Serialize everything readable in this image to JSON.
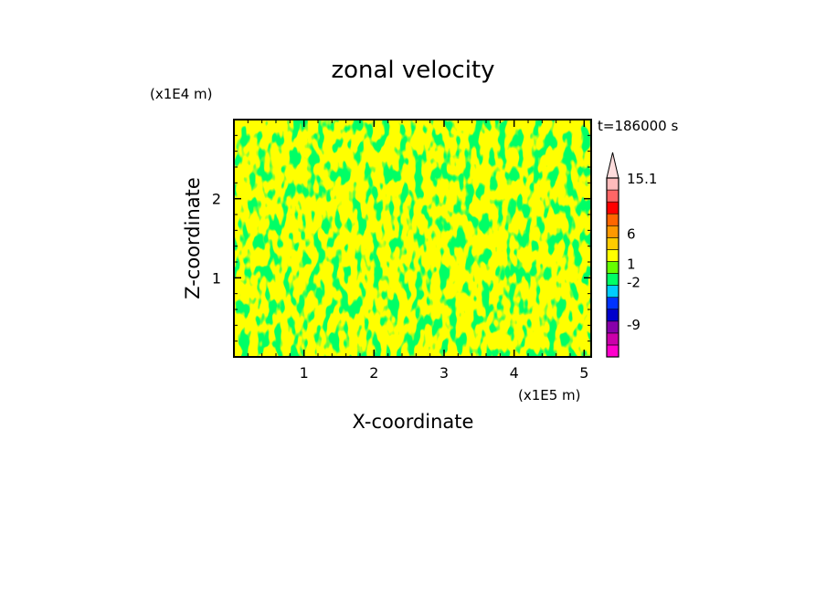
{
  "chart_data": {
    "type": "heatmap",
    "title": "zonal velocity",
    "xlabel": "X-coordinate",
    "ylabel": "Z-coordinate",
    "x_unit": "(x1E5 m)",
    "y_unit": "(x1E4 m)",
    "time_label": "t=186000 s",
    "xlim": [
      0,
      5.1
    ],
    "ylim": [
      0,
      3.0
    ],
    "x_ticks": [
      1,
      2,
      3,
      4,
      5
    ],
    "x_tick_labels": [
      "1",
      "2",
      "3",
      "4",
      "5"
    ],
    "y_ticks": [
      1,
      2
    ],
    "y_tick_labels": [
      "1",
      "2"
    ],
    "field_colors": [
      "#00ff66",
      "#ffff00"
    ],
    "colorbar": {
      "extend_max": true,
      "bands": [
        {
          "color": "#ff00cc"
        },
        {
          "color": "#cc00aa"
        },
        {
          "color": "#8800aa"
        },
        {
          "color": "#0000cc"
        },
        {
          "color": "#0033ff"
        },
        {
          "color": "#00ccff"
        },
        {
          "color": "#00ff66"
        },
        {
          "color": "#66ff00"
        },
        {
          "color": "#ffff00"
        },
        {
          "color": "#ffcc00"
        },
        {
          "color": "#ff9900"
        },
        {
          "color": "#ff6600"
        },
        {
          "color": "#ff0000"
        },
        {
          "color": "#ff6666"
        },
        {
          "color": "#ffbbbb"
        }
      ],
      "labels": [
        {
          "text": "15.1",
          "value": 15.1
        },
        {
          "text": "6",
          "value": 6
        },
        {
          "text": "1",
          "value": 1
        },
        {
          "text": "-2",
          "value": -2
        },
        {
          "text": "-9",
          "value": -9
        }
      ]
    }
  }
}
